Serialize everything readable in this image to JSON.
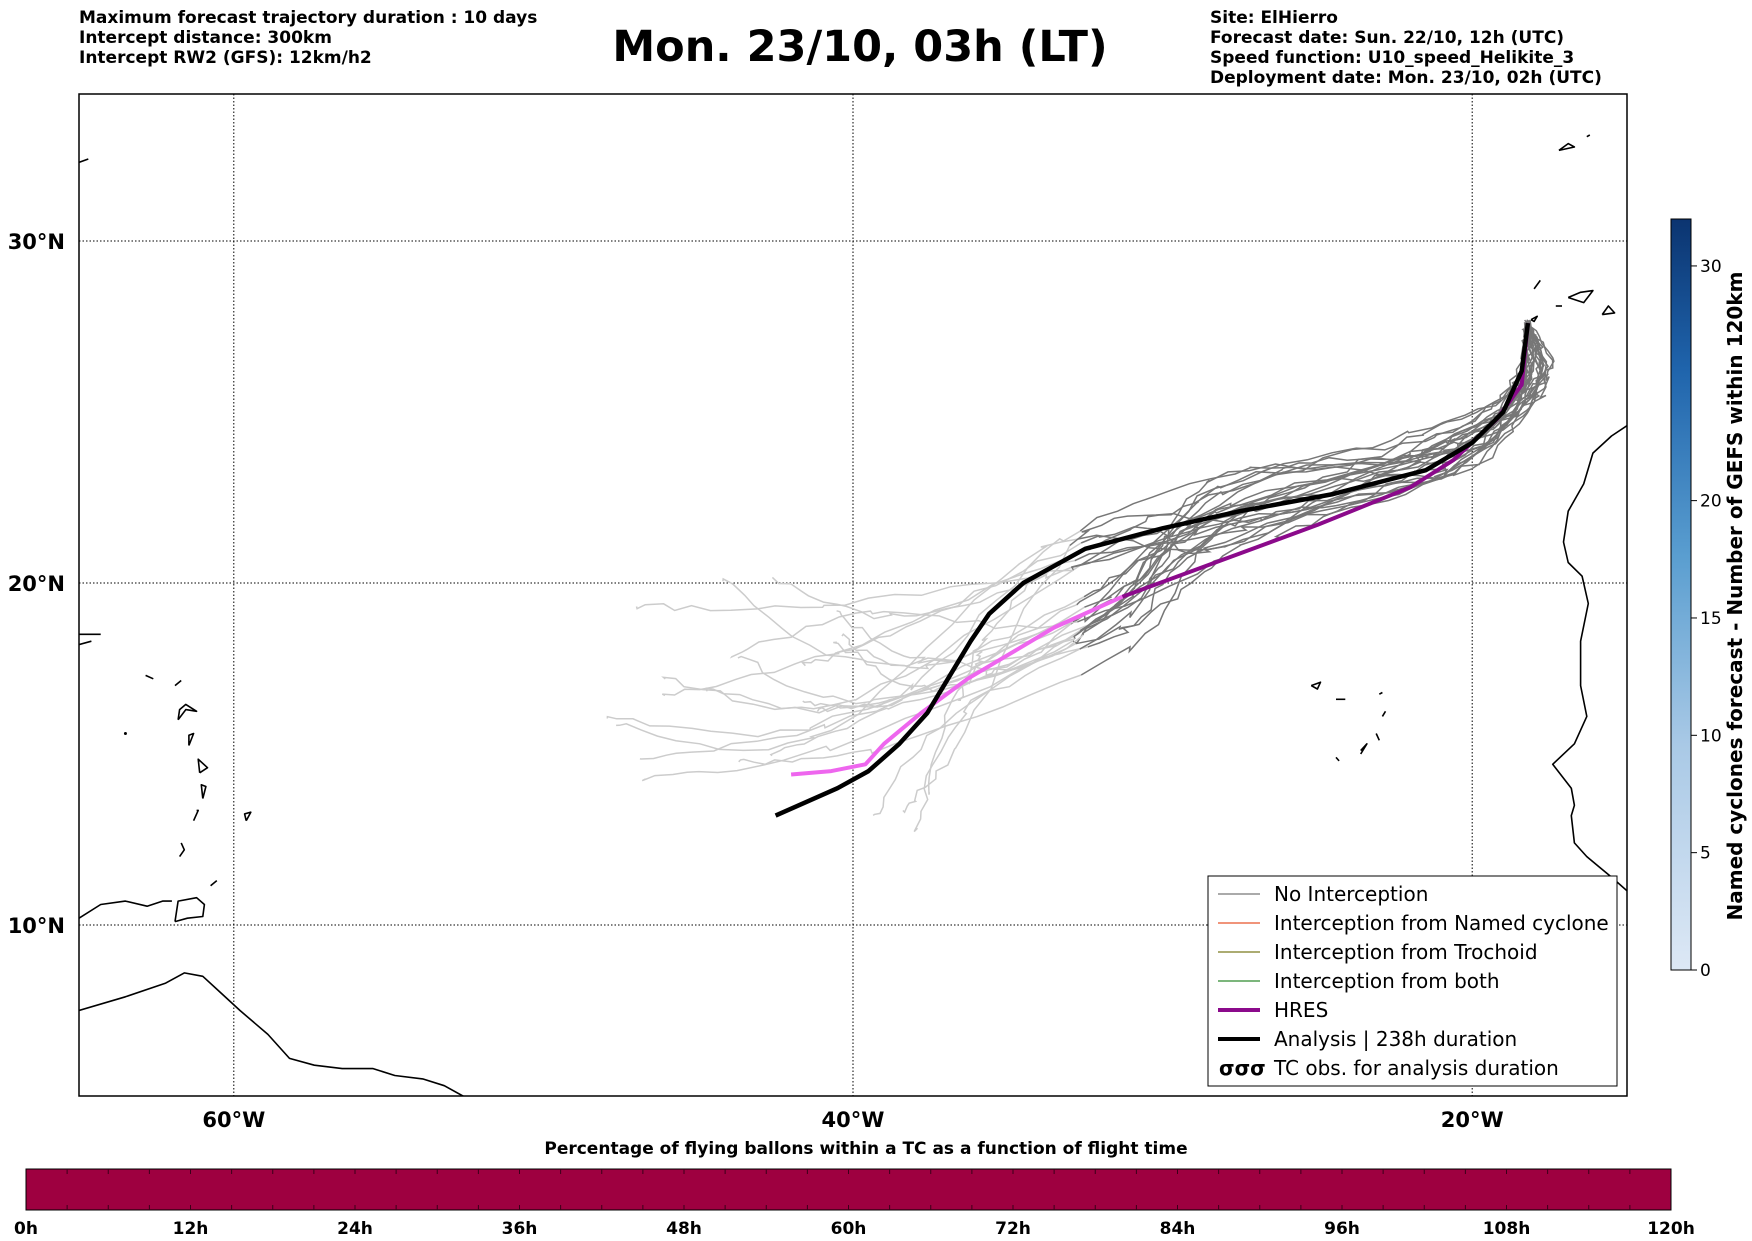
{
  "header_left": [
    "Maximum forecast trajectory duration : 10 days",
    "Intercept distance: 300km",
    "Intercept RW2 (GFS):  12km/h2"
  ],
  "title": "Mon. 23/10, 03h (LT)",
  "header_right": [
    "Site: ElHierro",
    "Forecast date: Sun. 22/10, 12h (UTC)",
    "Speed function: U10_speed_Helikite_3",
    "Deployment date: Mon. 23/10, 02h (UTC)"
  ],
  "colors": {
    "no_interception": "#777777",
    "no_interception_late": "#cccccc",
    "named_cyclone": "#e8542a",
    "trochoid": "#7a7a1f",
    "both": "#2f8a2f",
    "hres": "#8b0a8b",
    "hres_late": "#ee66ee",
    "analysis": "#000000",
    "bottom_bar": "#9e0040"
  },
  "chart_data": {
    "type": "line",
    "map": {
      "lon_range": [
        -65,
        -15
      ],
      "lat_range": [
        5,
        34.3
      ],
      "x_ticks": [
        {
          "value": -60,
          "label": "60°W"
        },
        {
          "value": -40,
          "label": "40°W"
        },
        {
          "value": -20,
          "label": "20°W"
        }
      ],
      "y_ticks": [
        {
          "value": 10,
          "label": "10°N"
        },
        {
          "value": 20,
          "label": "20°N"
        },
        {
          "value": 30,
          "label": "30°N"
        }
      ],
      "grid": true
    },
    "series": [
      {
        "name": "HRES",
        "points": [
          [
            -18.2,
            27.6
          ],
          [
            -18.4,
            25.8
          ],
          [
            -19.2,
            24.8
          ],
          [
            -20.6,
            23.6
          ],
          [
            -22.0,
            22.8
          ],
          [
            -25.0,
            21.7
          ],
          [
            -28.0,
            20.7
          ],
          [
            -31.3,
            19.6
          ],
          [
            -33.5,
            18.7
          ],
          [
            -34.8,
            18.0
          ],
          [
            -36.3,
            17.2
          ],
          [
            -37.8,
            16.2
          ],
          [
            -39.0,
            15.3
          ],
          [
            -39.6,
            14.7
          ],
          [
            -40.7,
            14.5
          ],
          [
            -42.0,
            14.4
          ]
        ]
      },
      {
        "name": "Analysis | 238h duration",
        "points": [
          [
            -18.2,
            27.6
          ],
          [
            -18.4,
            26.2
          ],
          [
            -19.0,
            25.0
          ],
          [
            -20.0,
            24.1
          ],
          [
            -21.5,
            23.3
          ],
          [
            -24.5,
            22.6
          ],
          [
            -27.5,
            22.1
          ],
          [
            -30.0,
            21.6
          ],
          [
            -32.5,
            21.0
          ],
          [
            -34.5,
            20.0
          ],
          [
            -35.6,
            19.1
          ],
          [
            -36.2,
            18.3
          ],
          [
            -37.0,
            17.1
          ],
          [
            -37.6,
            16.2
          ],
          [
            -38.5,
            15.3
          ],
          [
            -39.5,
            14.5
          ],
          [
            -40.5,
            14.0
          ],
          [
            -42.5,
            13.2
          ]
        ]
      }
    ],
    "ensemble_description": "GEFS member trajectories, all 'No Interception'",
    "legend": {
      "placement": "lower-right",
      "entries": [
        {
          "label": "No Interception",
          "style": "thin",
          "color_key": "no_interception"
        },
        {
          "label": "Interception from Named cyclone",
          "style": "thin",
          "color_key": "named_cyclone"
        },
        {
          "label": "Interception from Trochoid",
          "style": "thin",
          "color_key": "trochoid"
        },
        {
          "label": "Interception from both",
          "style": "thin",
          "color_key": "both"
        },
        {
          "label": "HRES",
          "style": "thick",
          "color_key": "hres"
        },
        {
          "label": "Analysis | 238h duration",
          "style": "thick",
          "color_key": "analysis"
        },
        {
          "label": "TC obs. for analysis duration",
          "style": "symbol",
          "symbol": "σσσ"
        }
      ]
    },
    "colorbar": {
      "label": "Named cyclones forecast - Number of GEFS within 120km",
      "ticks": [
        0,
        5,
        10,
        15,
        20,
        30
      ],
      "range": [
        0,
        32
      ]
    },
    "bottom_bar": {
      "title": "Percentage of flying ballons within a TC as a function of flight time",
      "ticks": [
        "0h",
        "12h",
        "24h",
        "36h",
        "48h",
        "60h",
        "72h",
        "84h",
        "96h",
        "108h",
        "120h"
      ]
    }
  }
}
